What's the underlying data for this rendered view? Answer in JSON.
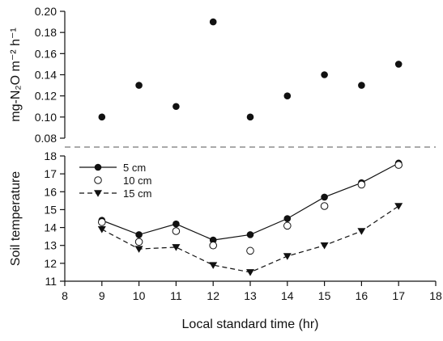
{
  "chart_data": [
    {
      "type": "scatter",
      "ylabel": "mg-N₂O m⁻² h⁻¹",
      "ylim": [
        0.08,
        0.2
      ],
      "yticks": [
        "0.08",
        "0.10",
        "0.12",
        "0.14",
        "0.16",
        "0.18",
        "0.20"
      ],
      "xlim": [
        8,
        18
      ],
      "grid": false,
      "series": [
        {
          "marker": "filled-circle",
          "x": [
            9,
            10,
            11,
            12,
            13,
            14,
            15,
            16,
            17
          ],
          "values": [
            0.1,
            0.13,
            0.11,
            0.19,
            0.1,
            0.12,
            0.14,
            0.13,
            0.15
          ]
        }
      ]
    },
    {
      "type": "line",
      "ylabel": "Soil temperature",
      "xlabel": "Local standard time (hr)",
      "ylim": [
        11,
        18
      ],
      "yticks": [
        "11",
        "12",
        "13",
        "14",
        "15",
        "16",
        "17",
        "18"
      ],
      "xlim": [
        8,
        18
      ],
      "xticks": [
        "8",
        "9",
        "10",
        "11",
        "12",
        "13",
        "14",
        "15",
        "16",
        "17",
        "18"
      ],
      "grid": false,
      "legend_position": "top-left",
      "series": [
        {
          "name": "5 cm",
          "marker": "filled-circle",
          "line": "solid",
          "x": [
            9,
            10,
            11,
            12,
            13,
            14,
            15,
            16,
            17
          ],
          "values": [
            14.4,
            13.6,
            14.2,
            13.3,
            13.6,
            14.5,
            15.7,
            16.5,
            17.6
          ]
        },
        {
          "name": "10 cm",
          "marker": "open-circle",
          "line": "none",
          "x": [
            9,
            10,
            11,
            12,
            13,
            14,
            15,
            16,
            17
          ],
          "values": [
            14.3,
            13.2,
            13.8,
            13.0,
            12.7,
            14.1,
            15.2,
            16.4,
            17.5
          ]
        },
        {
          "name": "15 cm",
          "marker": "filled-triangle-down",
          "line": "dashed",
          "x": [
            9,
            10,
            11,
            12,
            13,
            14,
            15,
            16,
            17
          ],
          "values": [
            13.9,
            12.8,
            12.9,
            11.9,
            11.5,
            12.4,
            13.0,
            13.8,
            15.2
          ]
        }
      ]
    }
  ]
}
